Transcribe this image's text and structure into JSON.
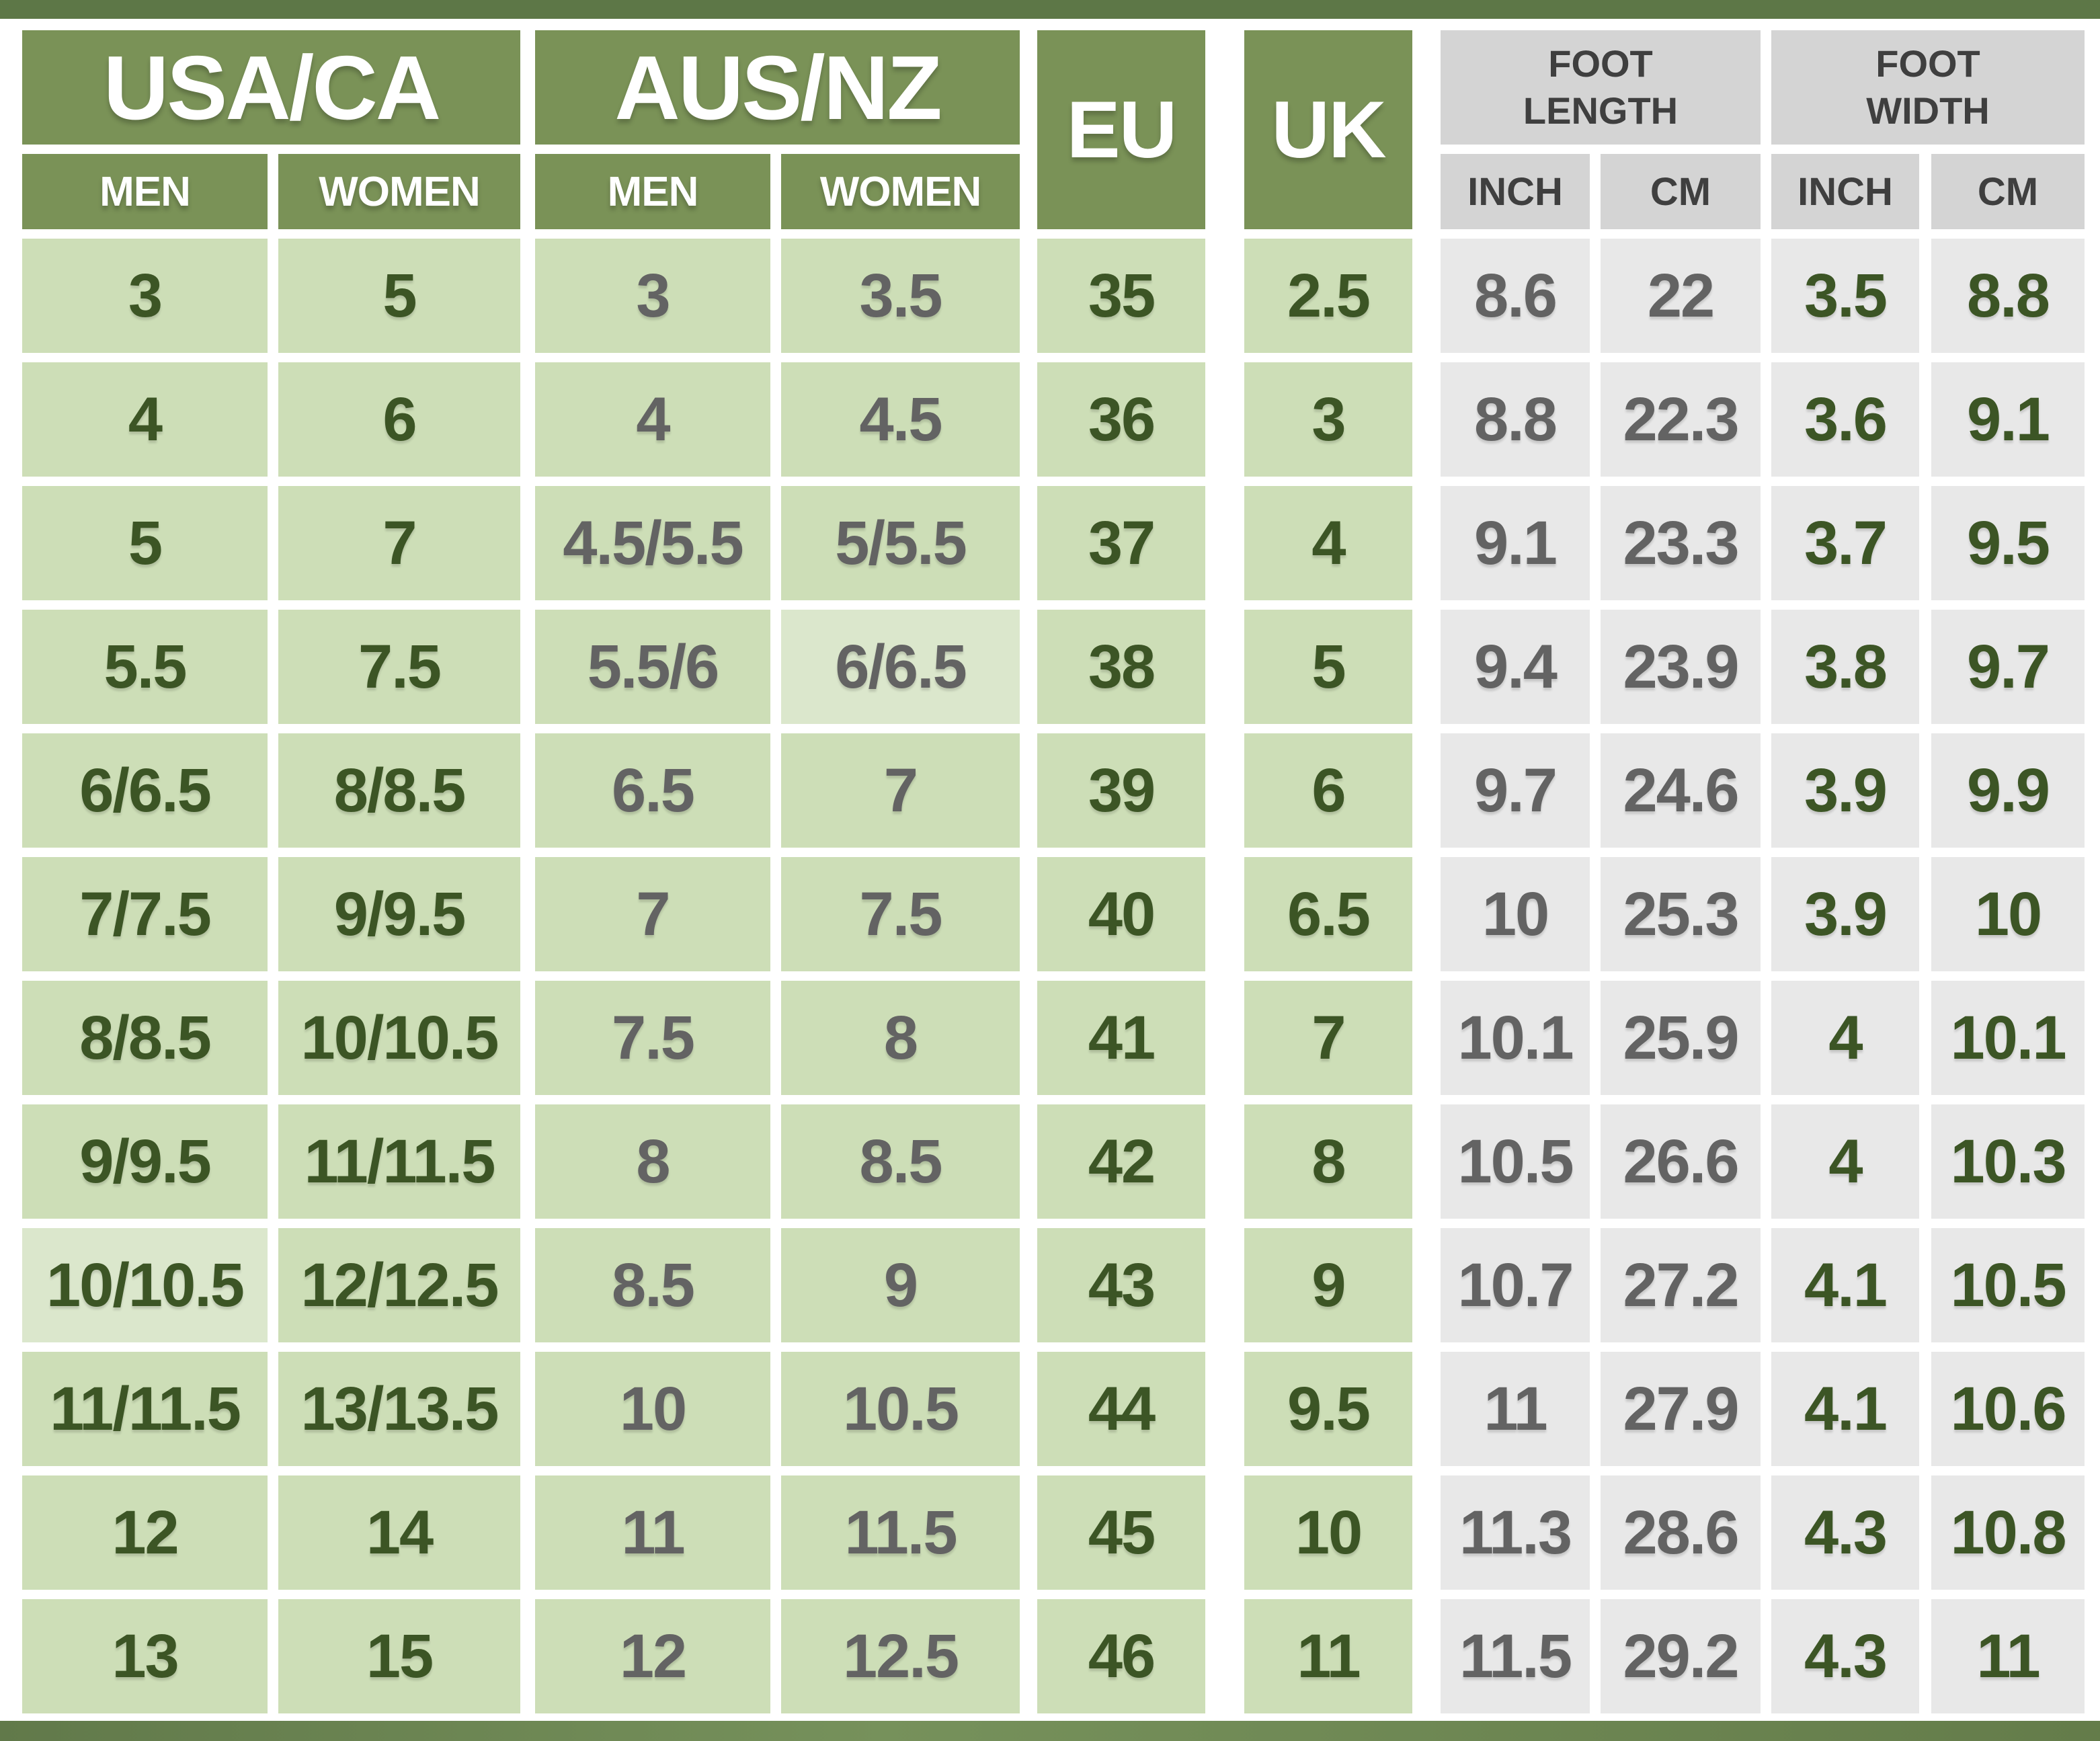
{
  "colors": {
    "top_bar_green": "#5d7747",
    "bottom_bar_green": "#6d8552",
    "header_green": "#7a9257",
    "header_gray": "#d4d4d4",
    "cell_green": "#cddeb7",
    "cell_green_highlight": "#dbe7cc",
    "cell_gray": "#e8e8e8",
    "text_dark_green": "#3c5525",
    "text_gray": "#636363",
    "header_text_gray": "#3f3f3f",
    "header_text_white": "#ffffff"
  },
  "table": {
    "groups": [
      {
        "id": "usa_ca",
        "label": "USA/CA",
        "sub": [
          "MEN",
          "WOMEN"
        ]
      },
      {
        "id": "aus_nz",
        "label": "AUS/NZ",
        "sub": [
          "MEN",
          "WOMEN"
        ]
      },
      {
        "id": "eu",
        "label": "EU"
      },
      {
        "id": "uk",
        "label": "UK"
      },
      {
        "id": "foot_length",
        "label": "FOOT LENGTH",
        "sub": [
          "INCH",
          "CM"
        ]
      },
      {
        "id": "foot_width",
        "label": "FOOT WIDTH",
        "sub": [
          "INCH",
          "CM"
        ]
      }
    ]
  },
  "chart_data": {
    "type": "table",
    "columns": [
      "USA/CA MEN",
      "USA/CA WOMEN",
      "AUS/NZ MEN",
      "AUS/NZ WOMEN",
      "EU",
      "UK",
      "FOOT LENGTH INCH",
      "FOOT LENGTH CM",
      "FOOT WIDTH INCH",
      "FOOT WIDTH CM"
    ],
    "rows": [
      [
        "3",
        "5",
        "3",
        "3.5",
        "35",
        "2.5",
        "8.6",
        "22",
        "3.5",
        "8.8"
      ],
      [
        "4",
        "6",
        "4",
        "4.5",
        "36",
        "3",
        "8.8",
        "22.3",
        "3.6",
        "9.1"
      ],
      [
        "5",
        "7",
        "4.5/5.5",
        "5/5.5",
        "37",
        "4",
        "9.1",
        "23.3",
        "3.7",
        "9.5"
      ],
      [
        "5.5",
        "7.5",
        "5.5/6",
        "6/6.5",
        "38",
        "5",
        "9.4",
        "23.9",
        "3.8",
        "9.7"
      ],
      [
        "6/6.5",
        "8/8.5",
        "6.5",
        "7",
        "39",
        "6",
        "9.7",
        "24.6",
        "3.9",
        "9.9"
      ],
      [
        "7/7.5",
        "9/9.5",
        "7",
        "7.5",
        "40",
        "6.5",
        "10",
        "25.3",
        "3.9",
        "10"
      ],
      [
        "8/8.5",
        "10/10.5",
        "7.5",
        "8",
        "41",
        "7",
        "10.1",
        "25.9",
        "4",
        "10.1"
      ],
      [
        "9/9.5",
        "11/11.5",
        "8",
        "8.5",
        "42",
        "8",
        "10.5",
        "26.6",
        "4",
        "10.3"
      ],
      [
        "10/10.5",
        "12/12.5",
        "8.5",
        "9",
        "43",
        "9",
        "10.7",
        "27.2",
        "4.1",
        "10.5"
      ],
      [
        "11/11.5",
        "13/13.5",
        "10",
        "10.5",
        "44",
        "9.5",
        "11",
        "27.9",
        "4.1",
        "10.6"
      ],
      [
        "12",
        "14",
        "11",
        "11.5",
        "45",
        "10",
        "11.3",
        "28.6",
        "4.3",
        "10.8"
      ],
      [
        "13",
        "15",
        "12",
        "12.5",
        "46",
        "11",
        "11.5",
        "29.2",
        "4.3",
        "11"
      ]
    ],
    "highlighted_cells": [
      [
        3,
        3
      ],
      [
        8,
        0
      ]
    ]
  }
}
